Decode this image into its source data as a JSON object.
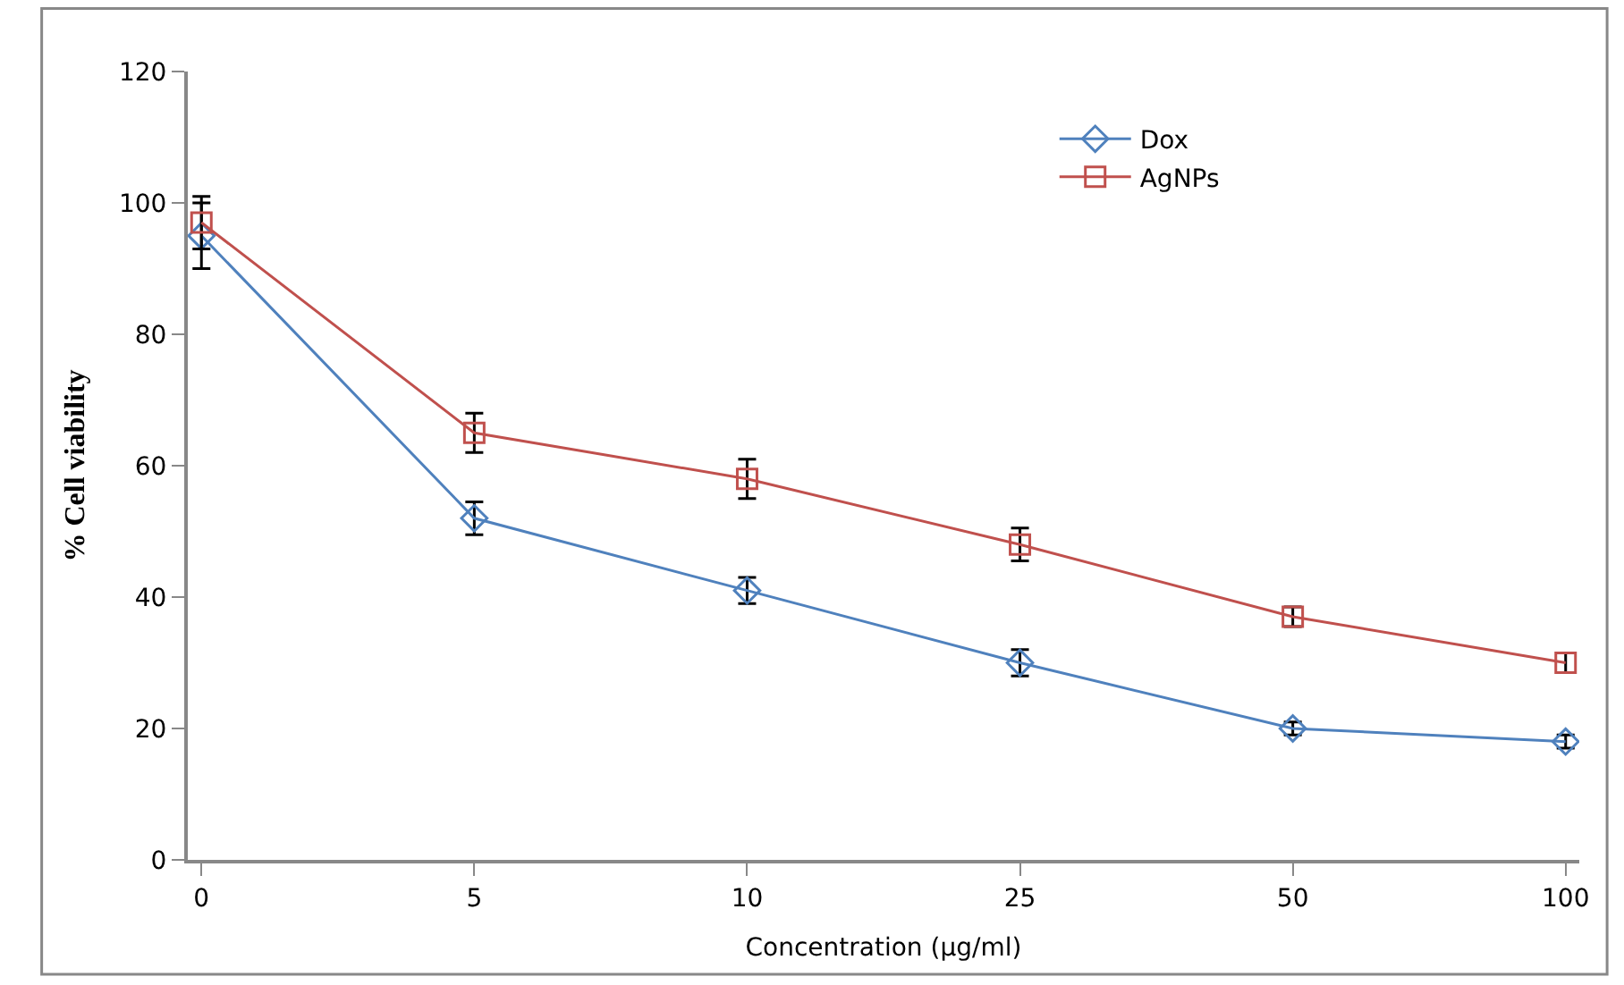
{
  "chart_data": {
    "type": "line",
    "xlabel": "Concentration (µg/ml)",
    "ylabel": "% Cell viability",
    "categories": [
      "0",
      "5",
      "10",
      "25",
      "50",
      "100"
    ],
    "ylim": [
      0,
      120
    ],
    "yticks": [
      0,
      20,
      40,
      60,
      80,
      100,
      120
    ],
    "legend": "top right",
    "line_style": "solid",
    "series": [
      {
        "name": "Dox",
        "color": "#4f81bd",
        "marker": "diamond",
        "values": [
          95,
          52,
          41,
          30,
          20,
          18
        ],
        "errors": [
          5,
          2.5,
          2,
          2,
          1,
          1
        ]
      },
      {
        "name": "AgNPs",
        "color": "#c0504d",
        "marker": "square",
        "values": [
          97,
          65,
          58,
          48,
          37,
          30
        ],
        "errors": [
          4,
          3,
          3,
          2.5,
          1.5,
          1.5
        ]
      }
    ]
  }
}
